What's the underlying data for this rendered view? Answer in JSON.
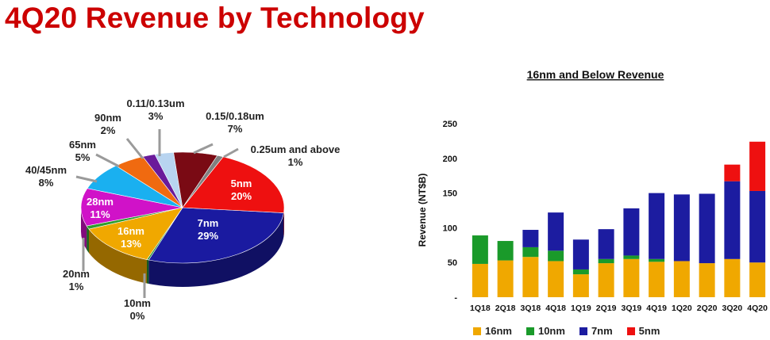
{
  "page": {
    "title": "4Q20 Revenue by Technology"
  },
  "chart_data": [
    {
      "type": "pie",
      "title": "",
      "slices": [
        {
          "label": "7nm",
          "percent": "29%",
          "value": 29,
          "color": "#1a1aa0"
        },
        {
          "label": "10nm",
          "percent": "0%",
          "value": 0.3,
          "color": "#1a8a2a"
        },
        {
          "label": "16nm",
          "percent": "13%",
          "value": 13,
          "color": "#f0a800"
        },
        {
          "label": "20nm",
          "percent": "1%",
          "value": 1,
          "color": "#2e9e2e"
        },
        {
          "label": "28nm",
          "percent": "11%",
          "value": 11,
          "color": "#d012c8"
        },
        {
          "label": "40/45nm",
          "percent": "8%",
          "value": 8,
          "color": "#1ab0f0"
        },
        {
          "label": "65nm",
          "percent": "5%",
          "value": 5,
          "color": "#f06a10"
        },
        {
          "label": "90nm",
          "percent": "2%",
          "value": 2,
          "color": "#6a1a9a"
        },
        {
          "label": "0.11/0.13um",
          "percent": "3%",
          "value": 3,
          "color": "#b8d4f0"
        },
        {
          "label": "0.15/0.18um",
          "percent": "7%",
          "value": 7,
          "color": "#7a0a14"
        },
        {
          "label": "0.25um and above",
          "percent": "1%",
          "value": 1,
          "color": "#808080"
        },
        {
          "label": "5nm",
          "percent": "20%",
          "value": 20,
          "color": "#ee1010"
        }
      ]
    },
    {
      "type": "bar",
      "stacked": true,
      "title": "16nm and Below Revenue",
      "xlabel": "",
      "ylabel": "Revenue (NT$B)",
      "ylim": [
        0,
        250
      ],
      "yticks": [
        "-",
        "50",
        "100",
        "150",
        "200",
        "250"
      ],
      "categories": [
        "1Q18",
        "2Q18",
        "3Q18",
        "4Q18",
        "1Q19",
        "2Q19",
        "3Q19",
        "4Q19",
        "1Q20",
        "2Q20",
        "3Q20",
        "4Q20"
      ],
      "series": [
        {
          "name": "16nm",
          "color": "#f0a800",
          "values": [
            48,
            53,
            58,
            52,
            33,
            49,
            55,
            51,
            52,
            49,
            55,
            50
          ]
        },
        {
          "name": "10nm",
          "color": "#1a9a2a",
          "values": [
            41,
            28,
            14,
            15,
            7,
            6,
            5,
            4,
            0,
            0,
            0,
            0
          ]
        },
        {
          "name": "7nm",
          "color": "#1c1ca0",
          "values": [
            0,
            0,
            25,
            55,
            43,
            43,
            68,
            95,
            96,
            100,
            112,
            103
          ]
        },
        {
          "name": "5nm",
          "color": "#ee1010",
          "values": [
            0,
            0,
            0,
            0,
            0,
            0,
            0,
            0,
            0,
            0,
            24,
            71
          ]
        }
      ],
      "legend": "bottom"
    }
  ]
}
